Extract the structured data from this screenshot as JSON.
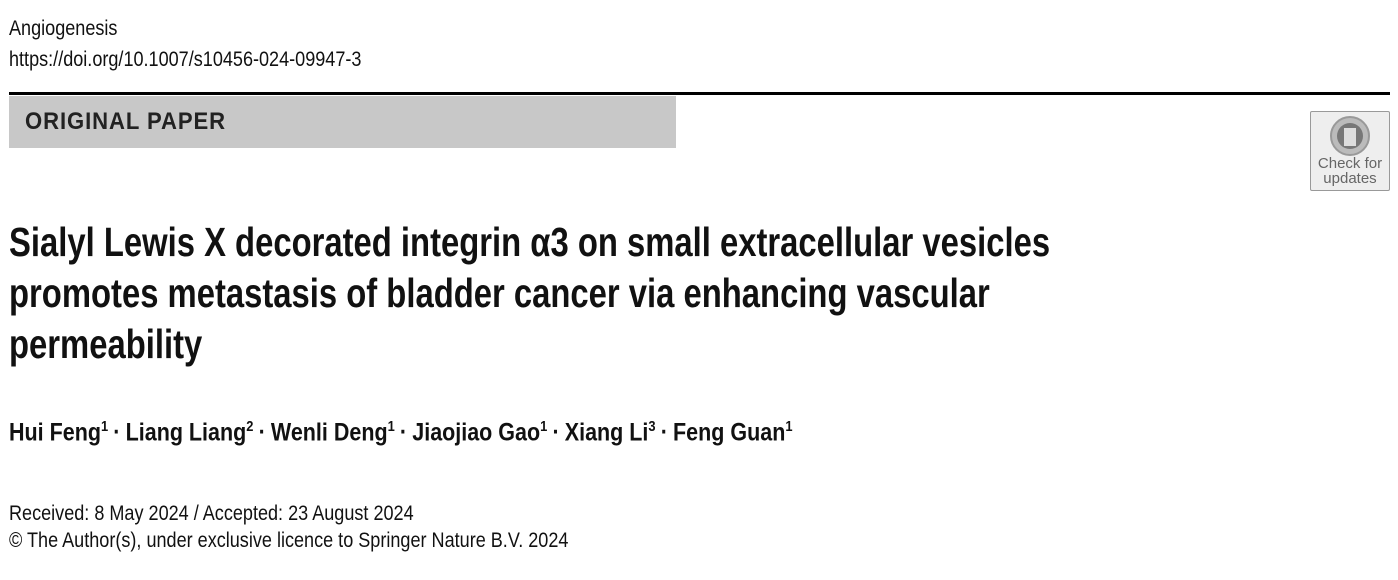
{
  "header": {
    "journal": "Angiogenesis",
    "doi": "https://doi.org/10.1007/s10456-024-09947-3",
    "article_type": "ORIGINAL PAPER",
    "badge": {
      "line1": "Check for",
      "line2": "updates"
    }
  },
  "title_lines": [
    "Sialyl Lewis X decorated integrin α3 on small extracellular vesicles",
    "promotes metastasis of bladder cancer via enhancing vascular",
    "permeability"
  ],
  "authors": [
    {
      "name": "Hui Feng",
      "affiliation": "1"
    },
    {
      "name": "Liang Liang",
      "affiliation": "2"
    },
    {
      "name": "Wenli Deng",
      "affiliation": "1"
    },
    {
      "name": "Jiaojiao Gao",
      "affiliation": "1"
    },
    {
      "name": "Xiang Li",
      "affiliation": "3"
    },
    {
      "name": "Feng Guan",
      "affiliation": "1"
    }
  ],
  "author_separator": "·",
  "dates": "Received: 8 May 2024 / Accepted: 23 August 2024",
  "copyright": "© The Author(s), under exclusive licence to Springer Nature B.V. 2024"
}
